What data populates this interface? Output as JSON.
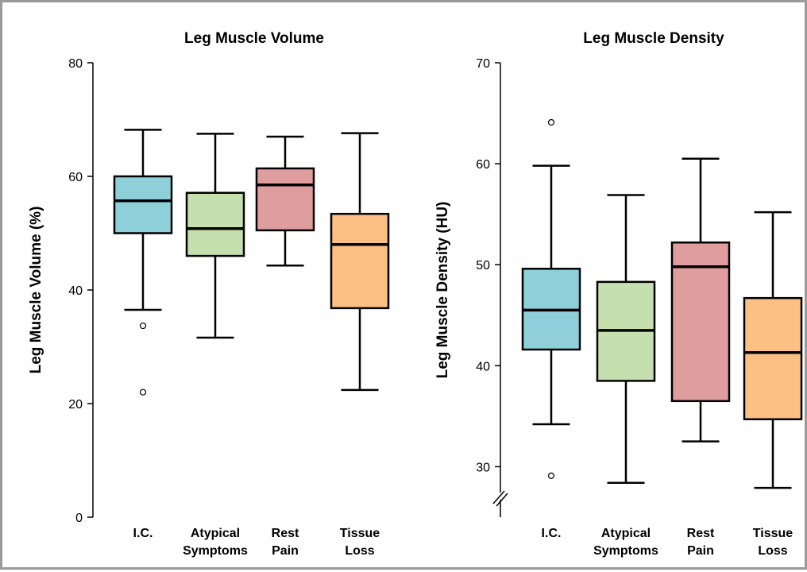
{
  "chart_data": [
    {
      "type": "box",
      "title": "Leg Muscle Volume",
      "ylabel": "Leg Muscle Volume (%)",
      "xlabel": "",
      "ylim": [
        0,
        80
      ],
      "yticks": [
        0,
        20,
        40,
        60,
        80
      ],
      "axis_break": false,
      "categories": [
        {
          "lines": [
            "I.C."
          ]
        },
        {
          "lines": [
            "Atypical",
            "Symptoms"
          ]
        },
        {
          "lines": [
            "Rest",
            "Pain"
          ]
        },
        {
          "lines": [
            "Tissue",
            "Loss"
          ]
        }
      ],
      "boxes": [
        {
          "whisker_low": 36.5,
          "q1": 50.0,
          "median": 55.7,
          "q3": 60.0,
          "whisker_high": 68.2,
          "outliers": [
            33.7,
            22.0
          ],
          "color": "#8ecfd9"
        },
        {
          "whisker_low": 31.6,
          "q1": 46.0,
          "median": 50.8,
          "q3": 57.1,
          "whisker_high": 67.5,
          "outliers": [],
          "color": "#c5dfae"
        },
        {
          "whisker_low": 44.3,
          "q1": 50.5,
          "median": 58.5,
          "q3": 61.4,
          "whisker_high": 67.0,
          "outliers": [],
          "color": "#df9d9d"
        },
        {
          "whisker_low": 22.4,
          "q1": 36.8,
          "median": 48.0,
          "q3": 53.4,
          "whisker_high": 67.6,
          "outliers": [],
          "color": "#fcbf84"
        }
      ]
    },
    {
      "type": "box",
      "title": "Leg Muscle Density",
      "ylabel": "Leg Muscle Density (HU)",
      "xlabel": "",
      "ylim": [
        25,
        70
      ],
      "yticks": [
        30,
        40,
        50,
        60,
        70
      ],
      "axis_break": true,
      "categories": [
        {
          "lines": [
            "I.C."
          ]
        },
        {
          "lines": [
            "Atypical",
            "Symptoms"
          ]
        },
        {
          "lines": [
            "Rest",
            "Pain"
          ]
        },
        {
          "lines": [
            "Tissue",
            "Loss"
          ]
        }
      ],
      "boxes": [
        {
          "whisker_low": 34.2,
          "q1": 41.6,
          "median": 45.5,
          "q3": 49.6,
          "whisker_high": 59.8,
          "outliers": [
            64.1,
            29.1
          ],
          "color": "#8ecfd9"
        },
        {
          "whisker_low": 28.4,
          "q1": 38.5,
          "median": 43.5,
          "q3": 48.3,
          "whisker_high": 56.9,
          "outliers": [],
          "color": "#c5dfae"
        },
        {
          "whisker_low": 32.5,
          "q1": 36.5,
          "median": 49.8,
          "q3": 52.2,
          "whisker_high": 60.5,
          "outliers": [],
          "color": "#df9d9d"
        },
        {
          "whisker_low": 27.9,
          "q1": 34.7,
          "median": 41.3,
          "q3": 46.7,
          "whisker_high": 55.2,
          "outliers": [],
          "color": "#fcbf84"
        }
      ]
    }
  ]
}
